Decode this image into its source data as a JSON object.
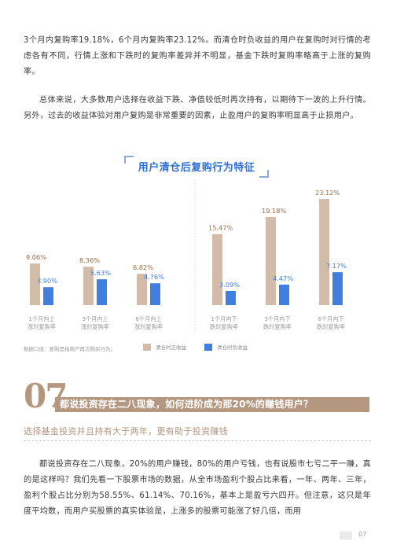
{
  "paragraphs": {
    "p1": "3个月内复购率19.18%，6个月内复购率23.12%。而清仓时负收益的用户在复购时对行情的考虑各有不同，行情上涨和下跌时的复购率差异并不明显，基金下跌时复购率略高于上涨的复购率。",
    "p2": "总体来说，大多数用户选择在收益下跌、净值较低时再次持有，以期待下一波的上升行情。另外，过去的收益体验对用户复购是非常重要的因素，止盈用户的复购率明显高于止损用户。",
    "p3": "都说投资存在二八现象，20%的用户赚钱，80%的用户亏钱，也有说股市七亏二平一赚，真的是这样吗？我们先看一下股票市场的数据，从全市场盈利个股占比来看，一年、两年、三年，盈利个股占比分别为58.55%、61.14%、70.16%，基本上是盈亏六四开。但注意，这只是年度平均数，而用户买股票的真实体验是，上涨多的股票可能涨了好几倍，而用"
  },
  "chart_data": {
    "type": "bar",
    "title": "用户清仓后复购行为特征",
    "categories": [
      "1个月内上涨时复购率",
      "3个月内上涨时复购率",
      "6个月内上涨时复购率",
      "1个月内下跌时复购率",
      "3个月内下跌时复购率",
      "6个月内下跌时复购率"
    ],
    "category_lines": [
      [
        "1个月内上",
        "涨时复购率"
      ],
      [
        "3个月内上",
        "涨时复购率"
      ],
      [
        "6个月内上",
        "涨时复购率"
      ],
      [
        "1个月内下",
        "跌时复购率"
      ],
      [
        "3个月内下",
        "跌时复购率"
      ],
      [
        "6个月内下",
        "跌时复购率"
      ]
    ],
    "series": [
      {
        "name": "清仓时正收益",
        "values": [
          9.06,
          8.36,
          6.82,
          15.47,
          19.18,
          23.12
        ],
        "labels": [
          "9.06%",
          "8.36%",
          "6.82%",
          "15.47%",
          "19.18%",
          "23.12%"
        ],
        "color": "#d2bca9",
        "label_color": "#9a6b45"
      },
      {
        "name": "清仓时负收益",
        "values": [
          3.9,
          5.63,
          4.76,
          3.09,
          4.47,
          7.17
        ],
        "labels": [
          "3.90%",
          "5.63%",
          "4.76%",
          "3.09%",
          "4.47%",
          "7.17%"
        ],
        "color": "#3f7fe0",
        "label_color": "#3f7fe0"
      }
    ],
    "ylim": [
      0,
      25
    ],
    "grid": false,
    "legend_position": "bottom"
  },
  "footnote": "数据口径：复购是指用户再次购买行为。",
  "legend": {
    "pos_label": "清仓时正收益",
    "neg_label": "清仓时负收益"
  },
  "section": {
    "number": "07",
    "title": "都说投资存在二八现象，如何进阶成为那20%的赚钱用户？",
    "subhead": "选择基金投资并且持有大于两年，更有助于投资赚钱"
  },
  "page_number": "07"
}
